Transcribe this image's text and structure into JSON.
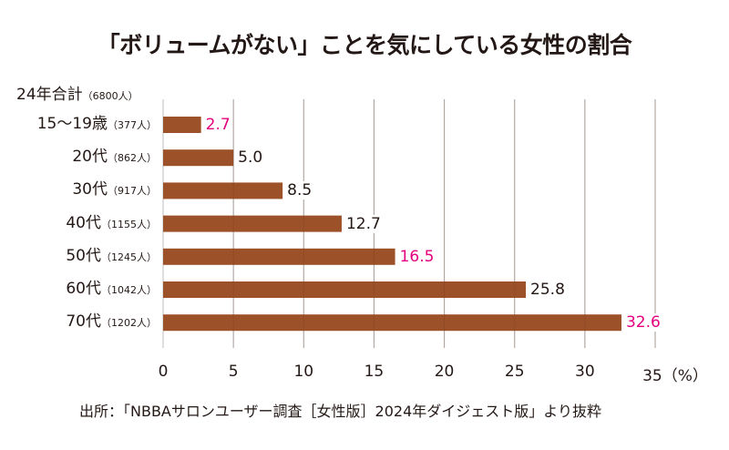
{
  "chart_data": {
    "type": "bar",
    "orientation": "horizontal",
    "title": "「ボリュームがない」ことを気にしている女性の割合",
    "header_label": {
      "group": "24年合計",
      "count": "（6800人）"
    },
    "categories": [
      {
        "group": "15〜19歳",
        "count": "（377人）"
      },
      {
        "group": "20代",
        "count": "（862人）"
      },
      {
        "group": "30代",
        "count": "（917人）"
      },
      {
        "group": "40代",
        "count": "（1155人）"
      },
      {
        "group": "50代",
        "count": "（1245人）"
      },
      {
        "group": "60代",
        "count": "（1042人）"
      },
      {
        "group": "70代",
        "count": "（1202人）"
      }
    ],
    "values": [
      2.7,
      5.0,
      8.5,
      12.7,
      16.5,
      25.8,
      32.6
    ],
    "value_labels": [
      "2.7",
      "5.0",
      "8.5",
      "12.7",
      "16.5",
      "25.8",
      "32.6"
    ],
    "highlighted": [
      true,
      false,
      false,
      false,
      true,
      false,
      true
    ],
    "xlabel": "",
    "ylabel": "",
    "xlim": [
      0,
      35
    ],
    "xticks": [
      "0",
      "5",
      "10",
      "15",
      "20",
      "25",
      "30",
      "35（%）"
    ],
    "xtick_values": [
      0,
      5,
      10,
      15,
      20,
      25,
      30,
      35
    ],
    "grid": true,
    "source": "出所：「NBBAサロンユーザー調査［女性版］2024年ダイジェスト版」より抜粋",
    "colors": {
      "bar": "#9c5129",
      "gridline": "#c8c8c8",
      "label_default": "#231815",
      "label_highlight": "#e4007f"
    }
  }
}
